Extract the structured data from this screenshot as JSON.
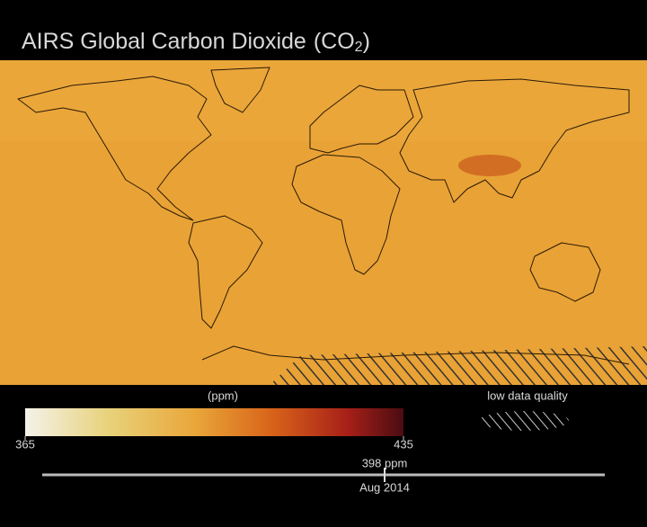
{
  "header": {
    "title": "AIRS Global Carbon Dioxide",
    "formula_open": "(CO",
    "formula_sub": "2",
    "formula_close": ")"
  },
  "legend": {
    "unit": "(ppm)",
    "colorbar": {
      "min": 365,
      "max": 435
    },
    "low_quality_label": "low data quality"
  },
  "readout": {
    "value_text": "398 ppm",
    "date": "Aug 2014"
  }
}
